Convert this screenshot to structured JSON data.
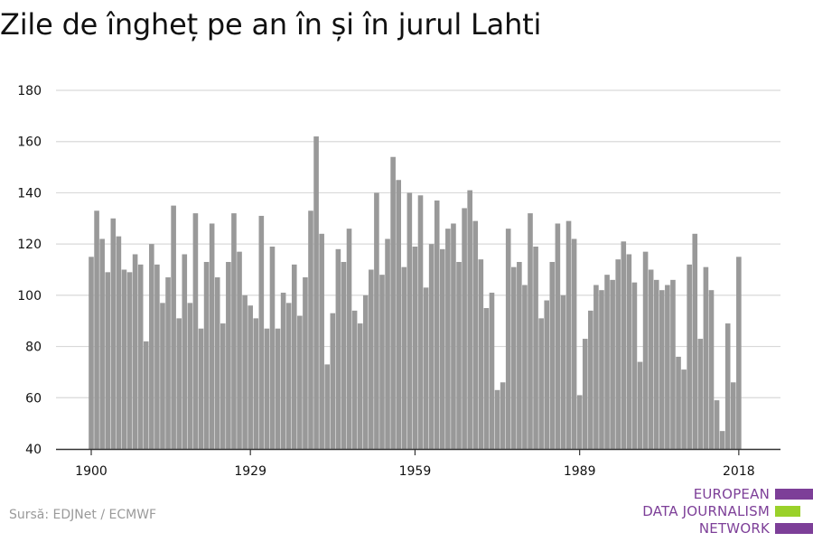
{
  "title": "Zile de îngheț pe an în și în jurul Lahti",
  "source": "Sursă: EDJNet / ECMWF",
  "logo": {
    "line1": "EUROPEAN",
    "line2": "DATA JOURNALISM",
    "line3": "NETWORK",
    "colors": {
      "text": "#7d3f98",
      "bar_purple": "#7d3f98",
      "bar_green": "#9ad12a"
    }
  },
  "colors": {
    "bar": "#999999",
    "grid": "#d9d9d9",
    "axis": "#333333"
  },
  "chart_data": {
    "type": "bar",
    "title": "Zile de îngheț pe an în și în jurul Lahti",
    "xlabel": "",
    "ylabel": "",
    "x_start": 1900,
    "x_end": 2018,
    "x_ticks": [
      "1900",
      "1929",
      "1959",
      "1989",
      "2018"
    ],
    "y_ticks": [
      "40",
      "60",
      "80",
      "100",
      "120",
      "140",
      "160",
      "180"
    ],
    "ylim": [
      40,
      180
    ],
    "grid": true,
    "values": [
      115,
      133,
      122,
      109,
      130,
      123,
      110,
      109,
      116,
      112,
      82,
      120,
      112,
      97,
      107,
      135,
      91,
      116,
      97,
      132,
      87,
      113,
      128,
      107,
      89,
      113,
      132,
      117,
      100,
      96,
      91,
      131,
      87,
      119,
      87,
      101,
      97,
      112,
      92,
      107,
      133,
      162,
      124,
      73,
      93,
      118,
      113,
      126,
      94,
      89,
      100,
      110,
      140,
      108,
      122,
      154,
      145,
      111,
      140,
      119,
      139,
      103,
      120,
      137,
      118,
      126,
      128,
      113,
      134,
      141,
      129,
      114,
      95,
      101,
      63,
      66,
      126,
      111,
      113,
      104,
      132,
      119,
      91,
      98,
      113,
      128,
      100,
      129,
      122,
      61,
      83,
      94,
      104,
      102,
      108,
      106,
      114,
      121,
      116,
      105,
      74,
      117,
      110,
      106,
      102,
      104,
      106,
      76,
      71,
      112,
      124,
      83,
      111,
      102,
      59,
      47,
      89,
      66,
      115
    ]
  }
}
